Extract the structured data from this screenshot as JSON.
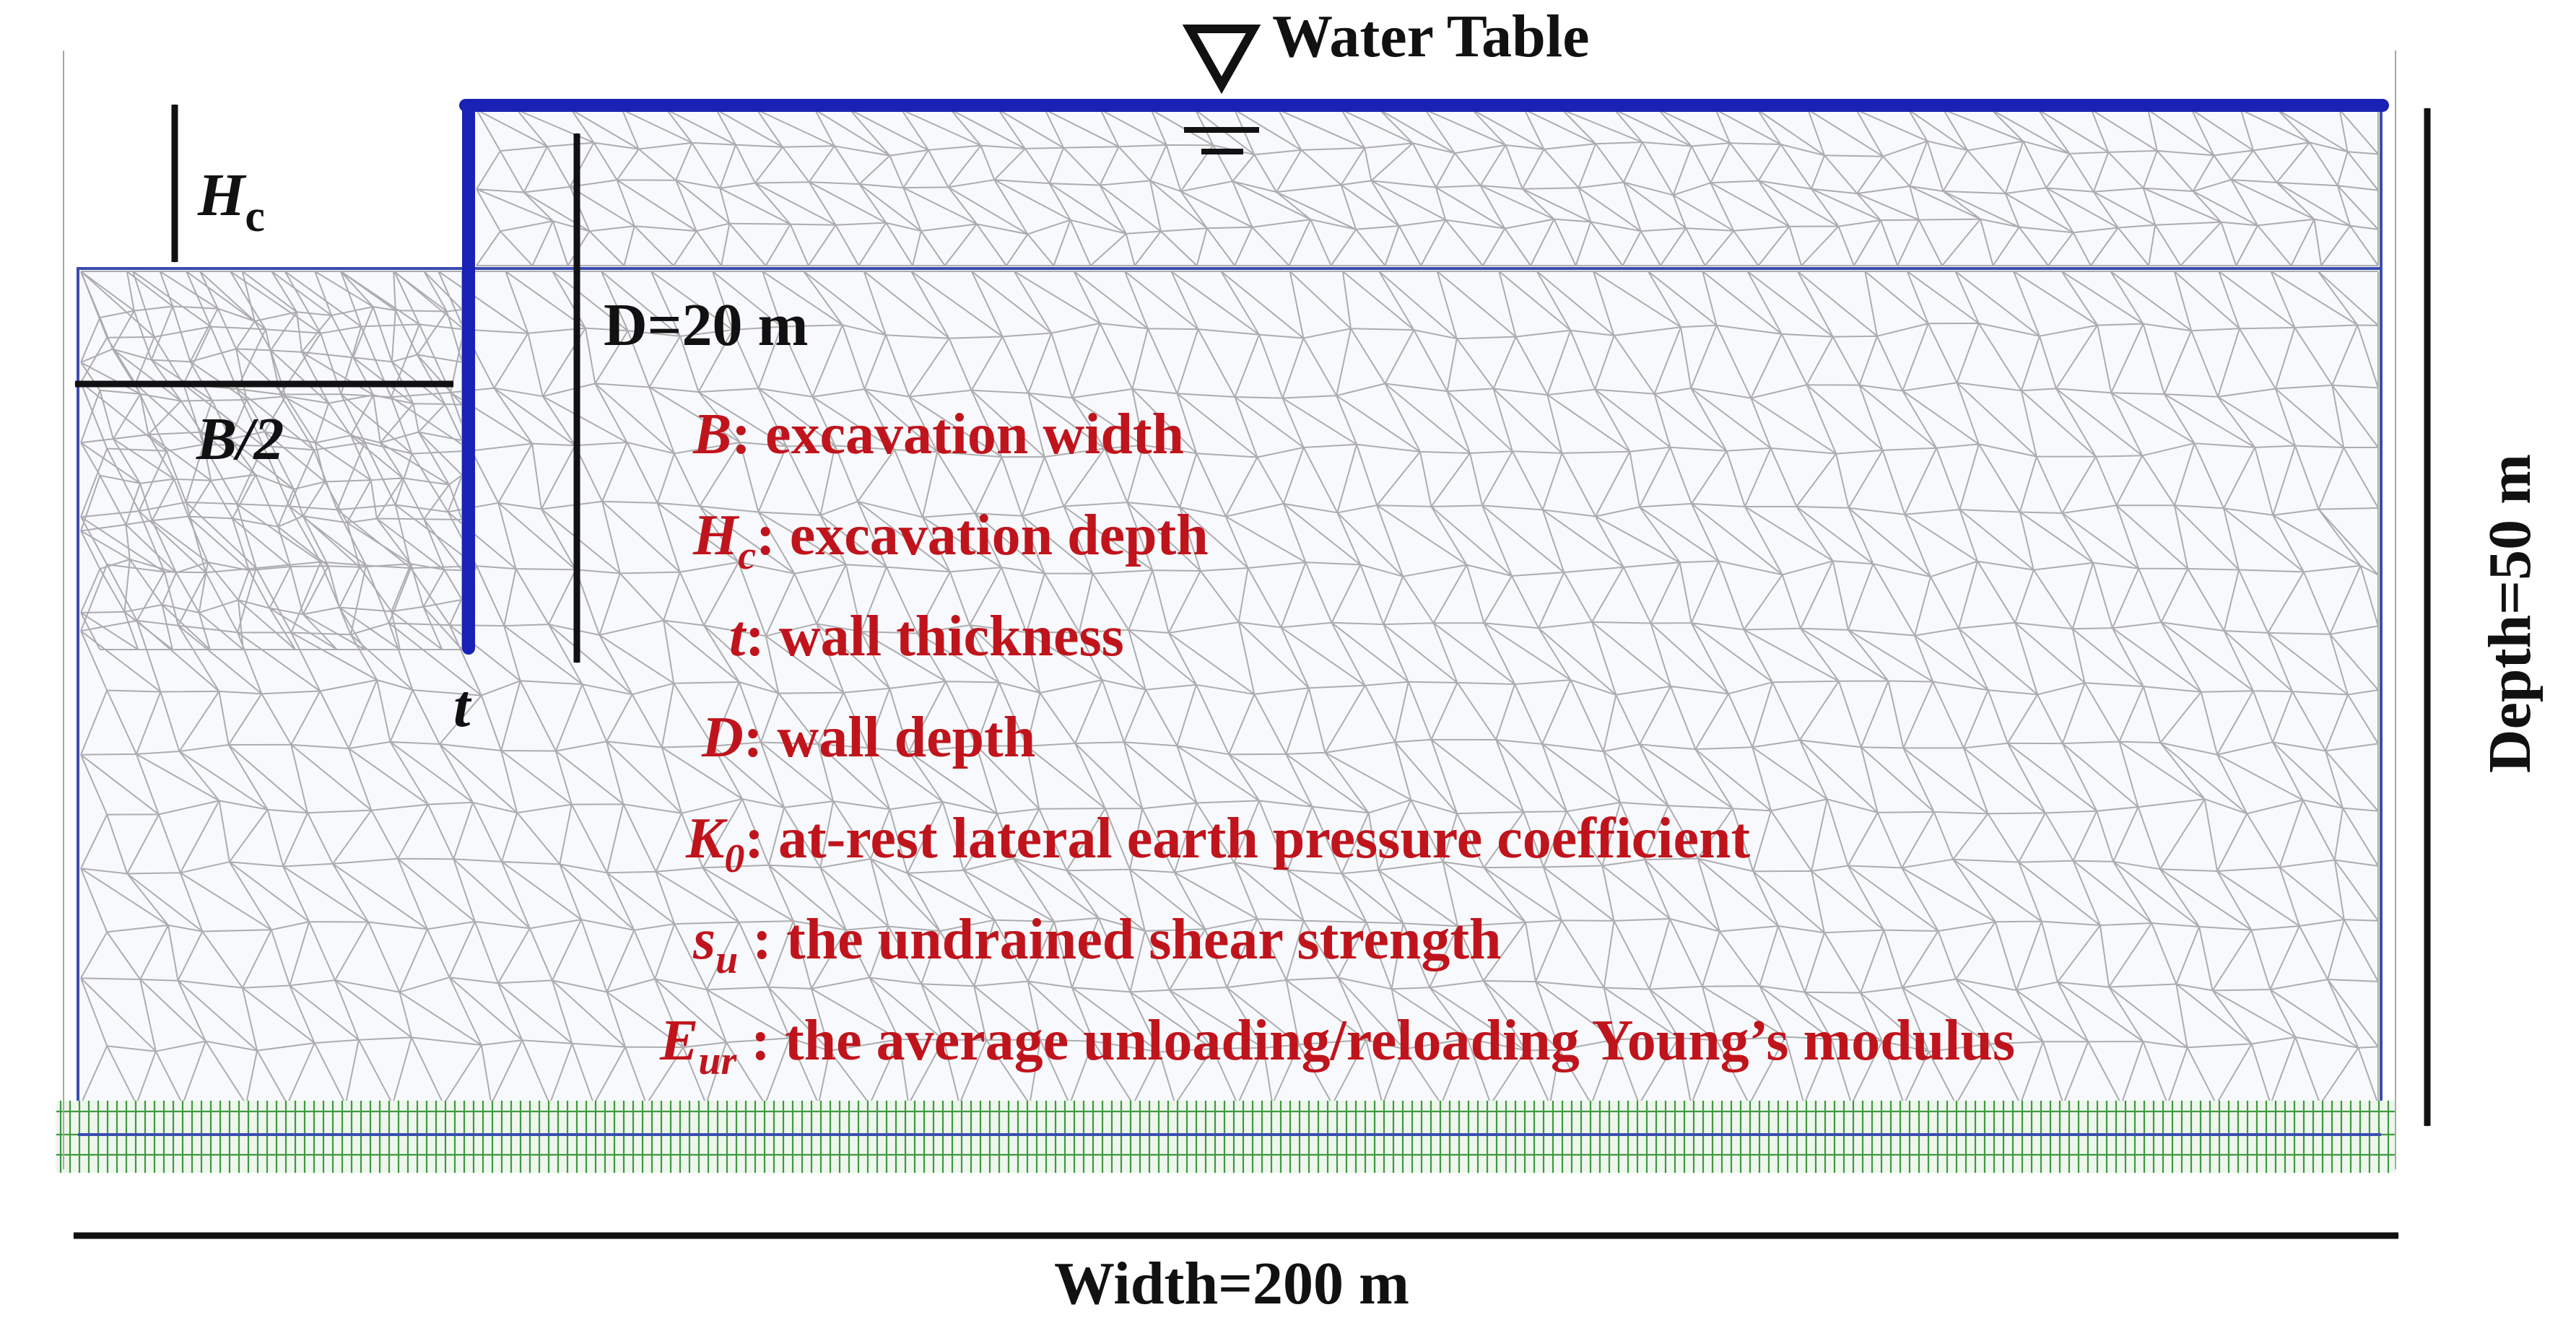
{
  "water_table_label": "Water Table",
  "labels": {
    "hc_symbol": "H",
    "hc_subscript": "c",
    "half_width": "B/2",
    "wall_depth_label": "D=20 m",
    "thickness_symbol": "t",
    "depth_label": "Depth=50 m",
    "width_label": "Width=200 m"
  },
  "legend": [
    {
      "symbol": "B",
      "subscript": "",
      "text": ":  excavation width"
    },
    {
      "symbol": "H",
      "subscript": "c",
      "text": ": excavation depth"
    },
    {
      "symbol": "t",
      "subscript": "",
      "text": ": wall thickness"
    },
    {
      "symbol": "D",
      "subscript": "",
      "text": ": wall depth"
    },
    {
      "symbol": "K",
      "subscript": "0",
      "text": ": at-rest lateral earth pressure coefficient"
    },
    {
      "symbol": "s",
      "subscript": "u",
      "text": " : the undrained shear strength"
    },
    {
      "symbol": "E",
      "subscript": "ur",
      "text": " : the average unloading/reloading  Young’s modulus"
    }
  ],
  "colors": {
    "wall": "#1a22b5",
    "legend_text": "#c0141c",
    "mesh": "#9a9a9a",
    "boundary": "#3a4db0",
    "fixity": "#3e9a3e",
    "annotation": "#111111"
  }
}
